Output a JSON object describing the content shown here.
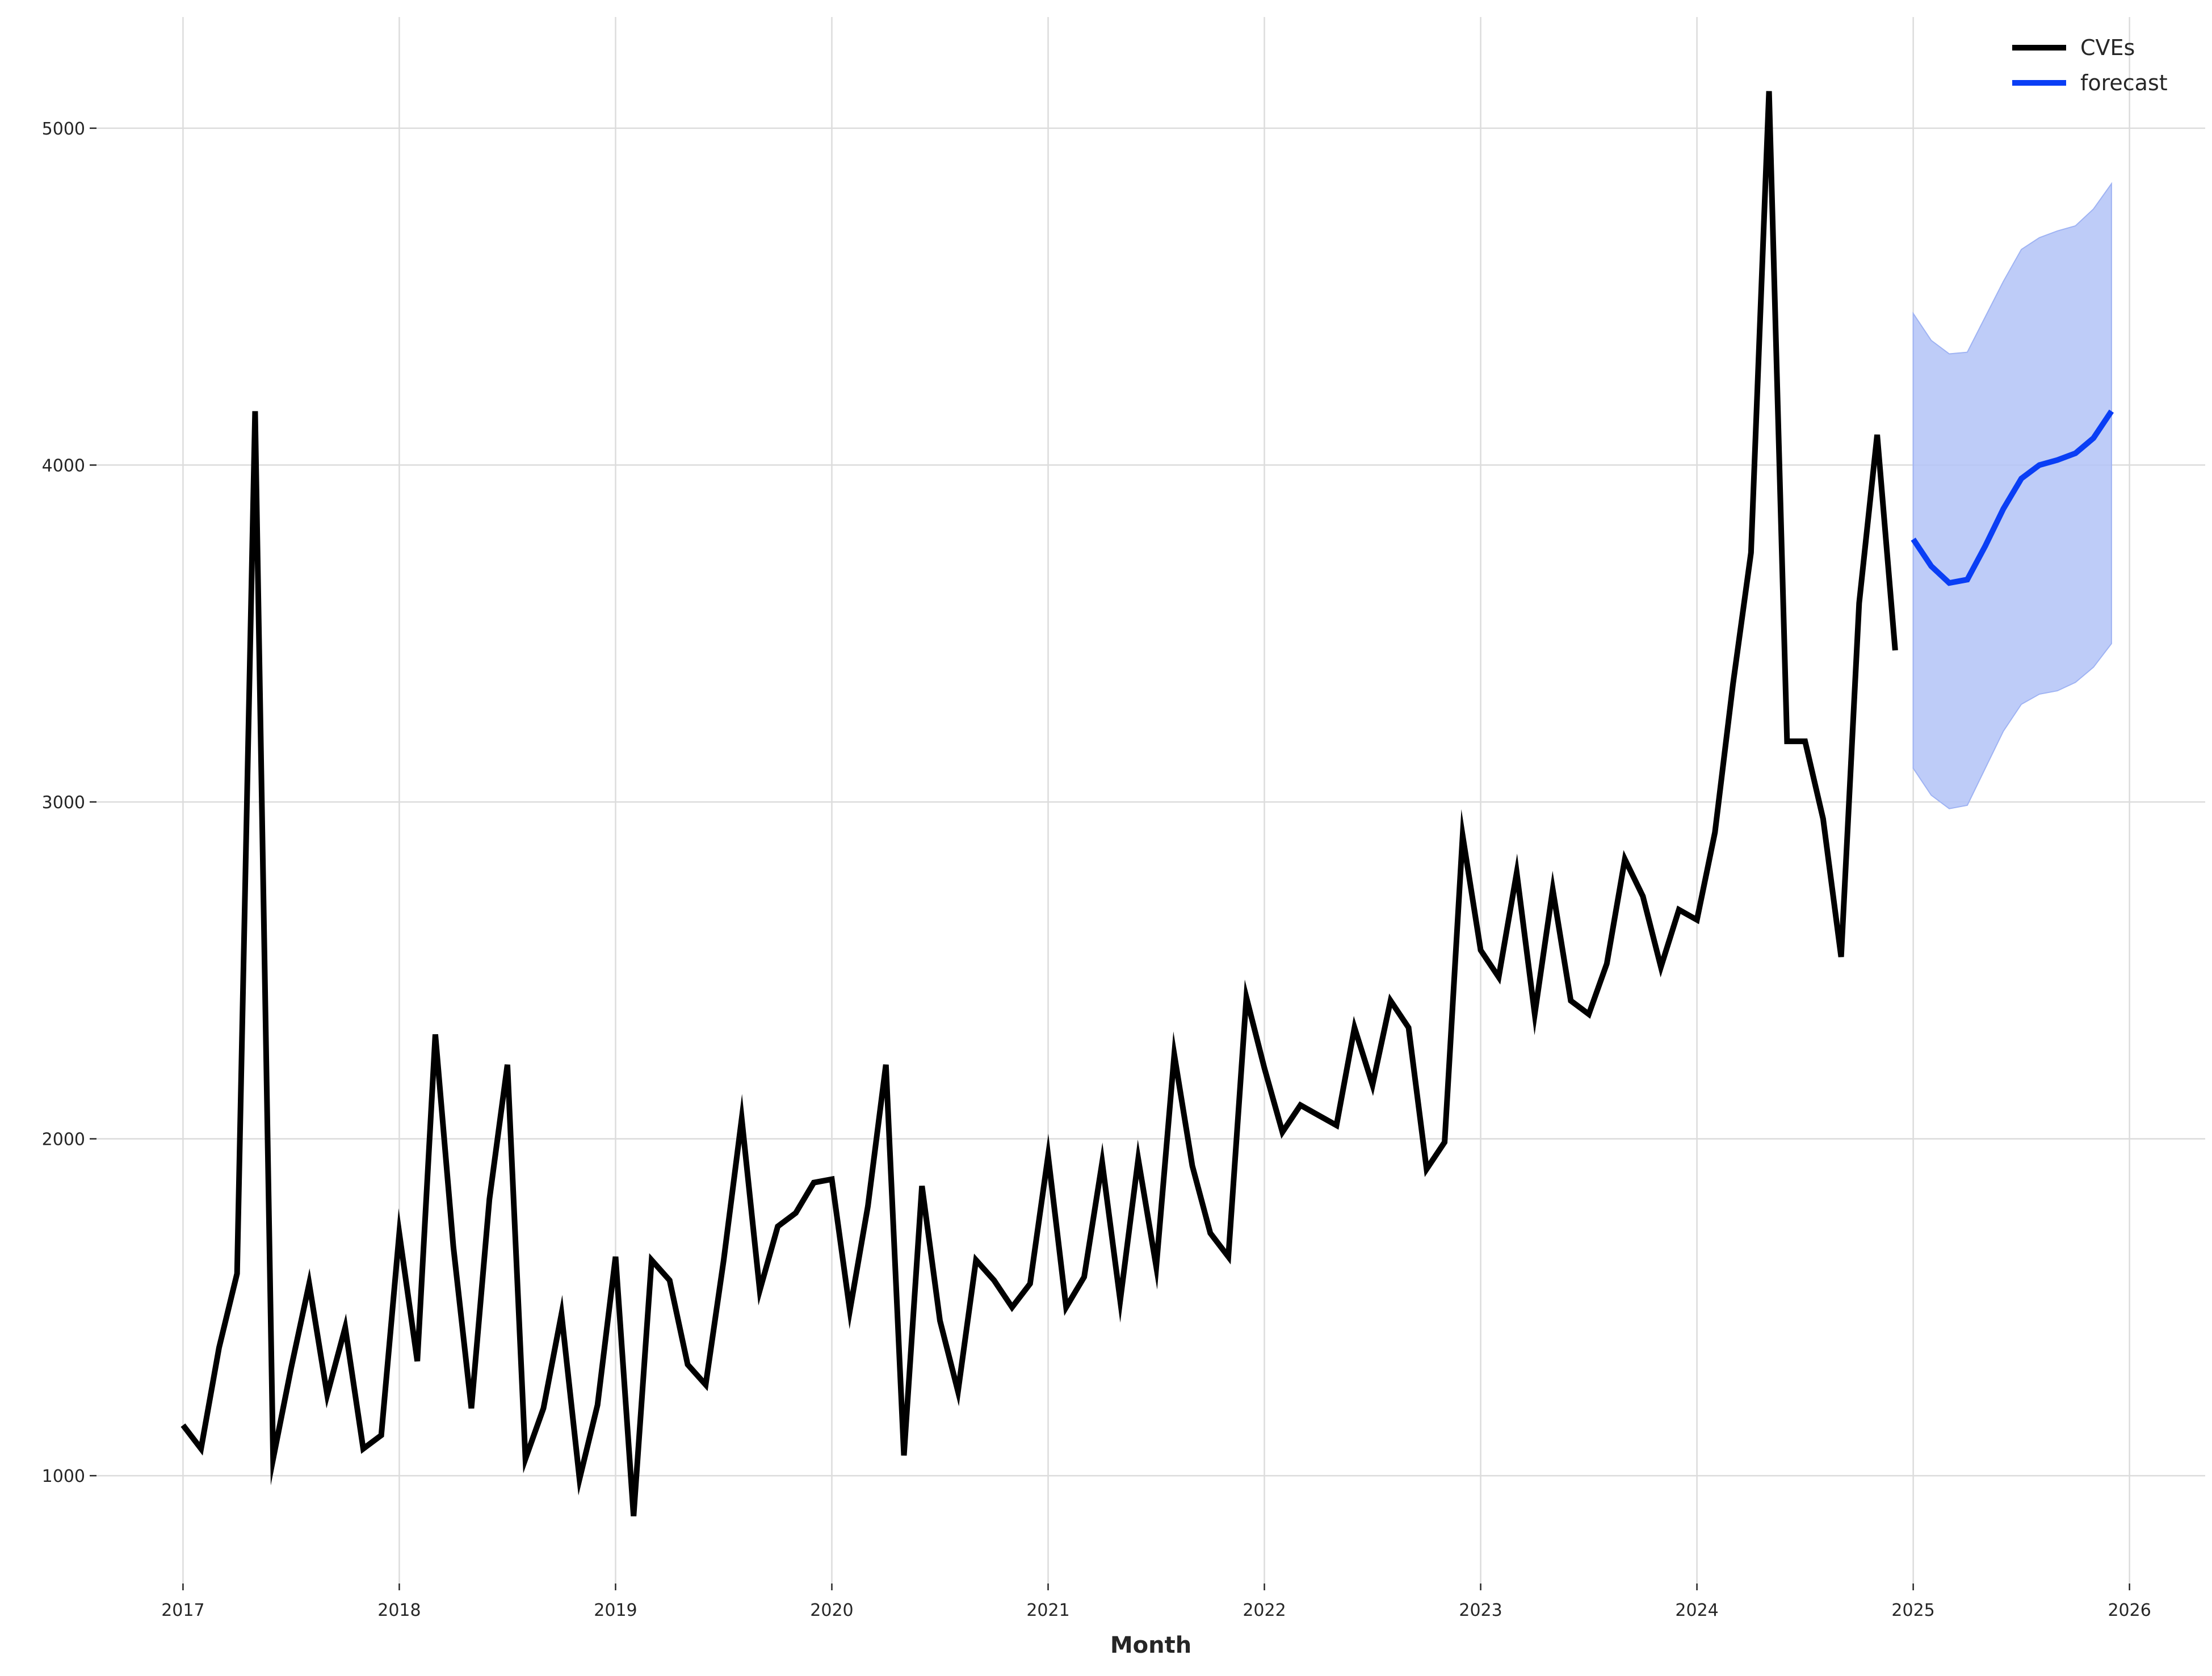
{
  "chart_data": {
    "type": "line",
    "xlabel": "Month",
    "ylabel": "",
    "xlim": [
      2016.6,
      2026.35
    ],
    "ylim": [
      680,
      5330
    ],
    "x_ticks": [
      2017,
      2018,
      2019,
      2020,
      2021,
      2022,
      2023,
      2024,
      2025,
      2026
    ],
    "x_tick_labels": [
      "2017",
      "2018",
      "2019",
      "2020",
      "2021",
      "2022",
      "2023",
      "2024",
      "2025",
      "2026"
    ],
    "y_ticks": [
      1000,
      2000,
      3000,
      4000,
      5000
    ],
    "y_tick_labels": [
      "1000",
      "2000",
      "3000",
      "4000",
      "5000"
    ],
    "grid": true,
    "legend_position": "top-right",
    "colors": {
      "observed": "#000000",
      "forecast": "#0a3ef5",
      "interval": "#b3c3f7",
      "grid": "#dcdcdc"
    },
    "series": [
      {
        "name": "CVEs",
        "start": "2017-01",
        "frequency": "monthly",
        "values": [
          1150,
          1080,
          1380,
          1600,
          4160,
          1050,
          1320,
          1570,
          1240,
          1440,
          1080,
          1120,
          1720,
          1340,
          2310,
          1680,
          1200,
          1820,
          2220,
          1050,
          1200,
          1480,
          990,
          1210,
          1650,
          880,
          1640,
          1580,
          1330,
          1270,
          1640,
          2060,
          1550,
          1740,
          1780,
          1870,
          1880,
          1490,
          1800,
          2220,
          1060,
          1860,
          1460,
          1250,
          1640,
          1580,
          1500,
          1570,
          1950,
          1500,
          1590,
          1930,
          1520,
          1940,
          1620,
          2250,
          1920,
          1720,
          1650,
          2420,
          2210,
          2020,
          2100,
          2070,
          2040,
          2330,
          2160,
          2410,
          2330,
          1910,
          1990,
          2900,
          2560,
          2480,
          2790,
          2370,
          2740,
          2410,
          2370,
          2520,
          2830,
          2720,
          2510,
          2680,
          2650,
          2910,
          3350,
          3740,
          5110,
          3180,
          3180,
          2950,
          2540,
          3590,
          4090,
          3450
        ]
      },
      {
        "name": "forecast",
        "start": "2025-01",
        "frequency": "monthly",
        "values": [
          3780,
          3700,
          3650,
          3660,
          3760,
          3870,
          3960,
          4000,
          4015,
          4035,
          4080,
          4160
        ],
        "lower": [
          3100,
          3020,
          2980,
          2990,
          3100,
          3210,
          3290,
          3320,
          3330,
          3355,
          3400,
          3470
        ],
        "upper": [
          4450,
          4370,
          4330,
          4335,
          4440,
          4545,
          4640,
          4675,
          4695,
          4710,
          4760,
          4835
        ]
      }
    ]
  }
}
